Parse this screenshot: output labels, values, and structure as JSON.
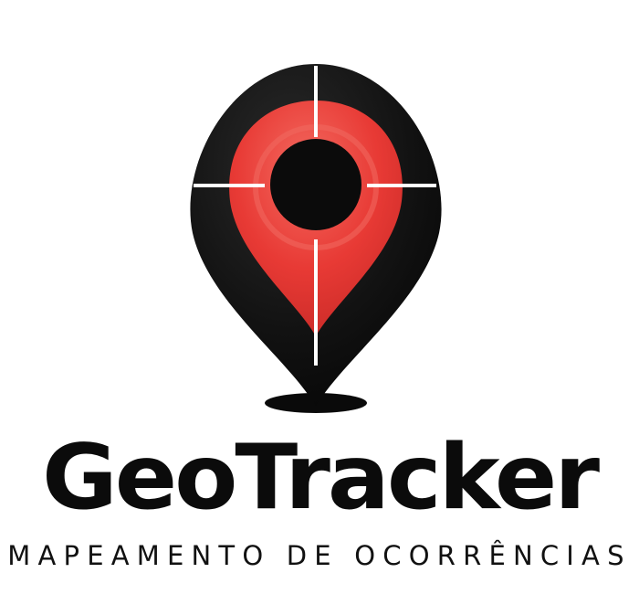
{
  "brand": {
    "name": "GeoTracker",
    "tagline": "MAPEAMENTO DE OCORRÊNCIAS"
  },
  "logo": {
    "icon": "map-pin-crosshair-icon",
    "colors": {
      "pin_outer": "#0d0d0d",
      "pin_inner": "#e83a35",
      "pin_inner_highlight": "#f36a60",
      "center_hole": "#0b0b0b",
      "crosshair": "#ffffff",
      "background": "#ffffff"
    }
  }
}
